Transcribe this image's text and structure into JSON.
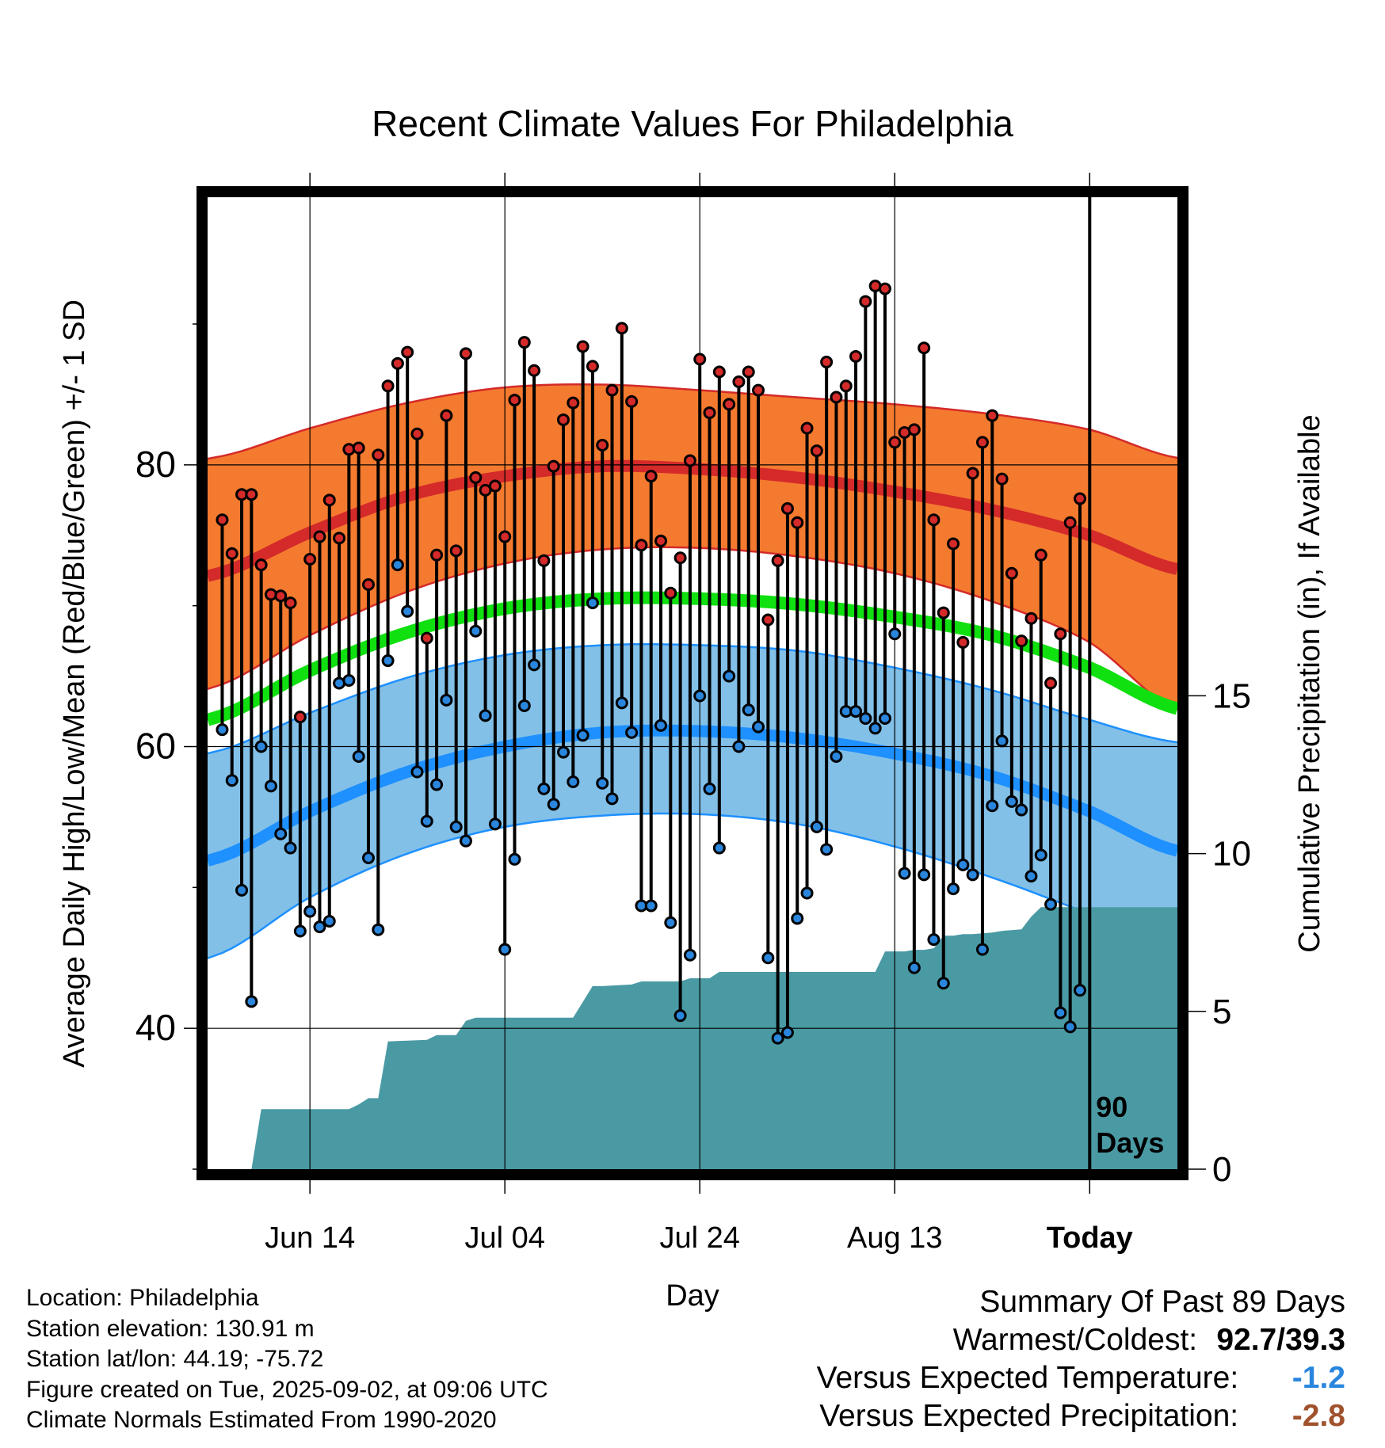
{
  "chart_data": {
    "type": "line",
    "title": "Recent Climate Values For Philadelphia",
    "xlabel": "Day",
    "ylabel_left": "Average Daily High/Low/Mean (Red/Blue/Green) +/- 1 SD",
    "ylabel_right": "Cumulative Precipitation (in), If Available",
    "x_ticks": [
      "Jun 14",
      "Jul 04",
      "Jul 24",
      "Aug 13",
      "Today"
    ],
    "x_tick_days": [
      10,
      30,
      50,
      70,
      90
    ],
    "xlim": [
      -0.5,
      99
    ],
    "y_left_ticks": [
      40,
      60,
      80
    ],
    "y_left_lim": [
      30,
      99
    ],
    "y_right_ticks": [
      0,
      5,
      10,
      15
    ],
    "y_right_lim": [
      0,
      30.8
    ],
    "grid": true,
    "today_marker_label": "90\nDays",
    "colors": {
      "high_band": "#f47a2f",
      "high_line": "#d42a2a",
      "low_band": "#82c0e8",
      "low_line": "#1e90ff",
      "mean_line": "#10e010",
      "precip": "#4a9aa4",
      "high_dot": "#d42a2a",
      "low_dot": "#2a86dd"
    },
    "normals": {
      "days": [
        0,
        10,
        20,
        30,
        40,
        50,
        60,
        70,
        80,
        90,
        99
      ],
      "high_mean": [
        72.2,
        75.2,
        77.8,
        79.2,
        79.9,
        79.7,
        79.1,
        78.1,
        76.8,
        75.0,
        72.6
      ],
      "high_sd_upper": [
        80.5,
        82.6,
        84.4,
        85.5,
        85.7,
        85.3,
        84.8,
        84.3,
        83.6,
        82.5,
        80.5
      ],
      "high_sd_lower": [
        64.2,
        67.9,
        71.0,
        73.0,
        74.0,
        74.1,
        73.5,
        72.3,
        70.3,
        67.4,
        62.6
      ],
      "mean": [
        62.0,
        65.4,
        68.1,
        69.8,
        70.5,
        70.5,
        70.1,
        69.2,
        67.9,
        65.6,
        62.7
      ],
      "low_sd_upper": [
        59.6,
        62.4,
        64.9,
        66.5,
        67.2,
        67.2,
        66.8,
        65.6,
        64.0,
        61.9,
        60.3
      ],
      "low_mean": [
        52.0,
        55.4,
        58.2,
        60.0,
        61.0,
        61.1,
        60.6,
        59.5,
        57.9,
        55.4,
        52.6
      ],
      "low_sd_lower": [
        45.1,
        49.3,
        52.4,
        54.3,
        55.1,
        55.2,
        54.5,
        52.9,
        50.7,
        48.1,
        45.3
      ]
    },
    "daily": {
      "start_day": 1,
      "highs": [
        76.1,
        73.7,
        77.9,
        77.9,
        72.9,
        70.8,
        70.7,
        70.2,
        62.1,
        73.3,
        74.9,
        77.5,
        74.8,
        81.1,
        81.2,
        71.5,
        80.7,
        85.6,
        87.2,
        88.0,
        82.2,
        67.7,
        73.6,
        83.5,
        73.9,
        87.9,
        79.1,
        78.2,
        78.5,
        74.9,
        84.6,
        88.7,
        86.7,
        73.2,
        79.9,
        83.2,
        84.4,
        88.4,
        87.0,
        81.4,
        85.3,
        89.7,
        84.5,
        74.3,
        79.2,
        74.6,
        70.9,
        73.4,
        80.3,
        87.5,
        83.7,
        86.6,
        84.3,
        85.9,
        86.6,
        85.3,
        69.0,
        73.2,
        76.9,
        75.9,
        82.6,
        81.0,
        87.3,
        84.8,
        85.6,
        87.7,
        91.6,
        92.7,
        92.5,
        81.6,
        82.3,
        82.5,
        88.3,
        76.1,
        69.5,
        74.4,
        67.4,
        79.4,
        81.6,
        83.5,
        79.0,
        72.3,
        67.5,
        69.1,
        73.6,
        64.5,
        68.0,
        75.9,
        77.6
      ],
      "lows": [
        61.2,
        57.6,
        49.8,
        41.9,
        60.0,
        57.2,
        53.8,
        52.8,
        46.9,
        48.3,
        47.2,
        47.6,
        64.5,
        64.7,
        59.3,
        52.1,
        47.0,
        66.1,
        72.9,
        69.6,
        58.2,
        54.7,
        57.3,
        63.3,
        54.3,
        53.3,
        68.2,
        62.2,
        54.5,
        45.6,
        52.0,
        62.9,
        65.8,
        57.0,
        55.9,
        59.6,
        57.5,
        60.8,
        70.2,
        57.4,
        56.3,
        63.1,
        61.0,
        48.7,
        48.7,
        61.5,
        47.5,
        40.9,
        45.2,
        63.6,
        57.0,
        52.8,
        65.0,
        60.0,
        62.6,
        61.4,
        45.0,
        39.3,
        39.7,
        47.8,
        49.6,
        54.3,
        52.7,
        59.3,
        62.5,
        62.5,
        62.0,
        61.3,
        62.0,
        68.0,
        51.0,
        44.3,
        50.9,
        46.3,
        43.2,
        49.9,
        51.6,
        50.9,
        45.6,
        55.8,
        60.4,
        56.1,
        55.5,
        50.8,
        52.3,
        48.8,
        41.1,
        40.1,
        42.7
      ]
    },
    "precip_cumulative": {
      "days": [
        -0.5,
        4,
        5,
        14,
        15,
        16,
        17,
        18,
        22,
        23,
        25,
        26,
        27,
        37,
        38,
        39,
        40,
        43,
        44,
        48,
        49,
        51,
        52,
        58,
        59,
        67,
        68,
        69,
        70,
        71,
        72,
        73,
        74,
        75,
        76,
        77,
        78,
        80,
        81,
        83,
        84,
        85,
        87,
        88,
        89,
        99
      ],
      "values": [
        0,
        0,
        1.9,
        1.9,
        2.05,
        2.25,
        2.25,
        4.05,
        4.1,
        4.25,
        4.25,
        4.7,
        4.8,
        4.8,
        5.3,
        5.8,
        5.8,
        5.85,
        5.95,
        5.95,
        6.05,
        6.05,
        6.25,
        6.25,
        6.25,
        6.25,
        6.25,
        6.9,
        6.9,
        6.9,
        6.95,
        6.95,
        7.0,
        7.4,
        7.4,
        7.45,
        7.45,
        7.5,
        7.55,
        7.6,
        8.0,
        8.3,
        8.3,
        8.3,
        8.3,
        8.3
      ]
    }
  },
  "info": {
    "location": "Location: Philadelphia",
    "elevation": "Station elevation: 130.91 m",
    "latlon": "Station lat/lon: 44.19; -75.72",
    "created": "Figure created on Tue, 2025-09-02, at 09:06 UTC",
    "normals": "Climate Normals Estimated From 1990-2020"
  },
  "summary": {
    "title": "Summary Of Past 89 Days",
    "warm_cold_label": "Warmest/Coldest:",
    "warm_cold_value": "92.7/39.3",
    "temp_label": "Versus Expected Temperature:",
    "temp_value": "-1.2",
    "temp_color": "#2a86dd",
    "precip_label": "Versus Expected Precipitation:",
    "precip_value": "-2.8",
    "precip_color": "#a0522d"
  }
}
